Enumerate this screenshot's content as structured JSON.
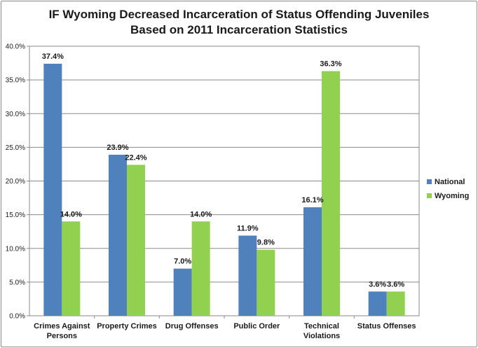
{
  "chart_data": {
    "type": "bar",
    "title": [
      "IF Wyoming Decreased Incarceration of Status Offending Juveniles",
      "Based on 2011 Incarceration Statistics"
    ],
    "categories": [
      [
        "Crimes Against",
        "Persons"
      ],
      [
        "Property Crimes"
      ],
      [
        "Drug Offenses"
      ],
      [
        "Public Order"
      ],
      [
        "Technical",
        "Violations"
      ],
      [
        "Status Offenses"
      ]
    ],
    "series": [
      {
        "name": "National",
        "color": "#4f81bd",
        "values": [
          37.4,
          23.9,
          7.0,
          11.9,
          16.1,
          3.6
        ]
      },
      {
        "name": "Wyoming",
        "color": "#92d050",
        "values": [
          14.0,
          22.4,
          14.0,
          9.8,
          36.3,
          3.6
        ]
      }
    ],
    "ylim": [
      0,
      40
    ],
    "yticks": [
      0,
      5,
      10,
      15,
      20,
      25,
      30,
      35,
      40
    ],
    "ytick_format": "percent_1dp",
    "grid": true,
    "legend_position": "right"
  }
}
